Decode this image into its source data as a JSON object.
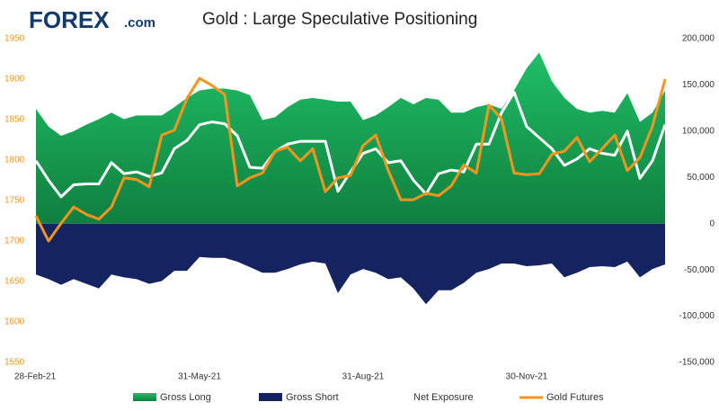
{
  "brand": {
    "name": "FOREX",
    "suffix": ".com"
  },
  "chart_data": {
    "type": "combo",
    "title": "Gold : Large Speculative Positioning",
    "categories": [
      "28-Feb-21",
      null,
      null,
      null,
      null,
      null,
      null,
      null,
      null,
      null,
      null,
      null,
      null,
      "31-May-21",
      null,
      null,
      null,
      null,
      null,
      null,
      null,
      null,
      null,
      null,
      null,
      null,
      "31-Aug-21",
      null,
      null,
      null,
      null,
      null,
      null,
      null,
      null,
      null,
      null,
      null,
      null,
      "30-Nov-21",
      null,
      null,
      null,
      null,
      null,
      null,
      null,
      null,
      null,
      null,
      null
    ],
    "ylim": [
      1550,
      1950
    ],
    "yticks": [
      1550,
      1600,
      1650,
      1700,
      1750,
      1800,
      1850,
      1900,
      1950
    ],
    "y2lim": [
      -150000,
      200000
    ],
    "y2ticks": [
      {
        "value": -150000,
        "label": "-150,000"
      },
      {
        "value": -100000,
        "label": "-100,000"
      },
      {
        "value": -50000,
        "label": "-50,000"
      },
      0,
      {
        "value": 50000,
        "label": "50,000"
      },
      {
        "value": 100000,
        "label": "100,000"
      },
      {
        "value": 150000,
        "label": "150,000"
      },
      {
        "value": 200000,
        "label": "200,000"
      }
    ],
    "series": [
      {
        "name": "Gross Long",
        "kind": "area",
        "axis": "y2",
        "color": "#16a853",
        "values": [
          124000,
          105000,
          95000,
          100000,
          107000,
          113000,
          120000,
          113000,
          117000,
          117000,
          117000,
          126000,
          136000,
          144000,
          146000,
          146000,
          144000,
          139000,
          112000,
          115000,
          126000,
          134000,
          136000,
          134000,
          132000,
          132000,
          112000,
          117000,
          126000,
          136000,
          129000,
          136000,
          134000,
          120000,
          120000,
          126000,
          129000,
          124000,
          144000,
          168000,
          185000,
          154000,
          136000,
          124000,
          120000,
          122000,
          120000,
          141000,
          110000,
          120000,
          144000
        ]
      },
      {
        "name": "Gross Short",
        "kind": "area",
        "axis": "y2",
        "color": "#152361",
        "values": [
          -55000,
          -60000,
          -66000,
          -60000,
          -65000,
          -70000,
          -55000,
          -58000,
          -60000,
          -65000,
          -62000,
          -51000,
          -51000,
          -36000,
          -37000,
          -37000,
          -41000,
          -47000,
          -53000,
          -53000,
          -49000,
          -44000,
          -41000,
          -43000,
          -75000,
          -55000,
          -49000,
          -53000,
          -60000,
          -58000,
          -70000,
          -87000,
          -72000,
          -72000,
          -64000,
          -53000,
          -49000,
          -43000,
          -43000,
          -46000,
          -45000,
          -43000,
          -58000,
          -53000,
          -47000,
          -46000,
          -47000,
          -41000,
          -58000,
          -49000,
          -44000
        ]
      },
      {
        "name": "Net Exposure",
        "kind": "line",
        "axis": "y2",
        "color": "#ffffff",
        "values": [
          68000,
          47000,
          29000,
          42000,
          43000,
          43000,
          66000,
          54000,
          56000,
          51000,
          55000,
          81000,
          90000,
          107000,
          110000,
          108000,
          95000,
          61000,
          60000,
          78000,
          86000,
          89000,
          89000,
          89000,
          35000,
          56000,
          76000,
          81000,
          66000,
          68000,
          47000,
          32000,
          54000,
          58000,
          56000,
          86000,
          86000,
          120000,
          142000,
          105000,
          93000,
          81000,
          63000,
          70000,
          81000,
          76000,
          74000,
          100000,
          49000,
          68000,
          107000
        ]
      },
      {
        "name": "Gold Futures",
        "kind": "line",
        "axis": "y",
        "color": "#f7941d",
        "values": [
          1731,
          1700,
          1722,
          1742,
          1733,
          1727,
          1742,
          1778,
          1776,
          1767,
          1831,
          1837,
          1876,
          1901,
          1892,
          1881,
          1768,
          1778,
          1784,
          1811,
          1816,
          1799,
          1814,
          1761,
          1778,
          1781,
          1818,
          1831,
          1787,
          1751,
          1751,
          1759,
          1756,
          1768,
          1794,
          1784,
          1868,
          1851,
          1784,
          1782,
          1783,
          1807,
          1811,
          1828,
          1798,
          1814,
          1831,
          1787,
          1803,
          1842,
          1900
        ]
      }
    ]
  }
}
